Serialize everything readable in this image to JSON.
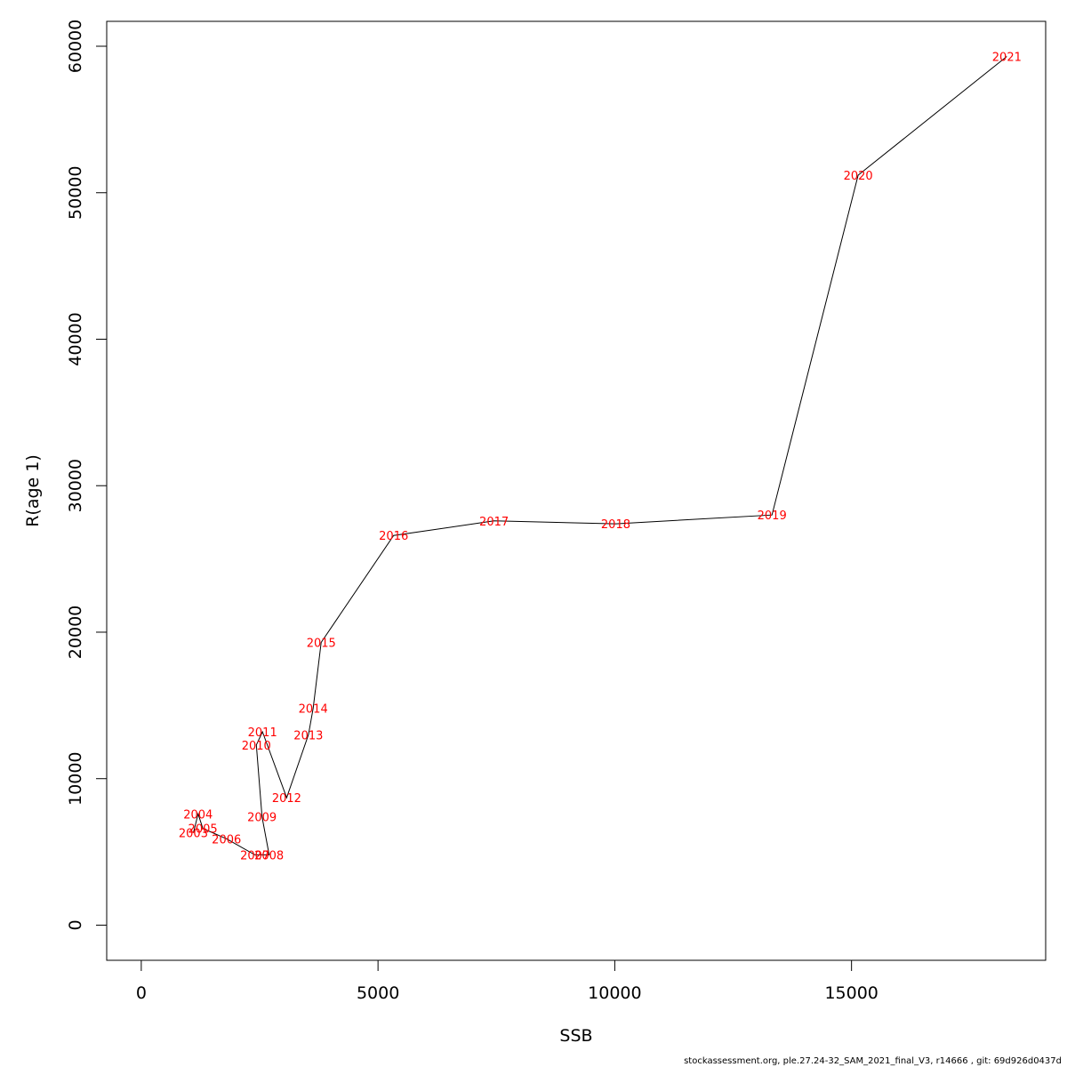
{
  "chart_data": {
    "type": "line",
    "xlabel": "SSB",
    "ylabel": "R(age 1)",
    "xlim": [
      -730,
      19100
    ],
    "ylim": [
      -2400,
      61700
    ],
    "xticks": [
      0,
      5000,
      10000,
      15000
    ],
    "yticks": [
      0,
      10000,
      20000,
      30000,
      40000,
      50000,
      60000
    ],
    "xtick_labels": [
      "0",
      "5000",
      "10000",
      "15000"
    ],
    "ytick_labels": [
      "0",
      "10000",
      "20000",
      "30000",
      "40000",
      "50000",
      "60000"
    ],
    "line_color": "#000000",
    "label_color": "#ff0000",
    "grid": false,
    "points": [
      {
        "label": "2003",
        "x": 1100,
        "y": 6300
      },
      {
        "label": "2004",
        "x": 1200,
        "y": 7600
      },
      {
        "label": "2005",
        "x": 1300,
        "y": 6600
      },
      {
        "label": "2006",
        "x": 1800,
        "y": 5900
      },
      {
        "label": "2007",
        "x": 2400,
        "y": 4800
      },
      {
        "label": "2008",
        "x": 2700,
        "y": 4800
      },
      {
        "label": "2009",
        "x": 2550,
        "y": 7400
      },
      {
        "label": "2010",
        "x": 2430,
        "y": 12300
      },
      {
        "label": "2011",
        "x": 2560,
        "y": 13200
      },
      {
        "label": "2012",
        "x": 3070,
        "y": 8700
      },
      {
        "label": "2013",
        "x": 3530,
        "y": 13000
      },
      {
        "label": "2014",
        "x": 3630,
        "y": 14800
      },
      {
        "label": "2015",
        "x": 3800,
        "y": 19300
      },
      {
        "label": "2016",
        "x": 5330,
        "y": 26600
      },
      {
        "label": "2017",
        "x": 7450,
        "y": 27600
      },
      {
        "label": "2018",
        "x": 10020,
        "y": 27400
      },
      {
        "label": "2019",
        "x": 13320,
        "y": 28000
      },
      {
        "label": "2020",
        "x": 15140,
        "y": 51200
      },
      {
        "label": "2021",
        "x": 18280,
        "y": 59300
      }
    ]
  },
  "footer": "stockassessment.org, ple.27.24-32_SAM_2021_final_V3, r14666 , git: 69d926d0437d"
}
